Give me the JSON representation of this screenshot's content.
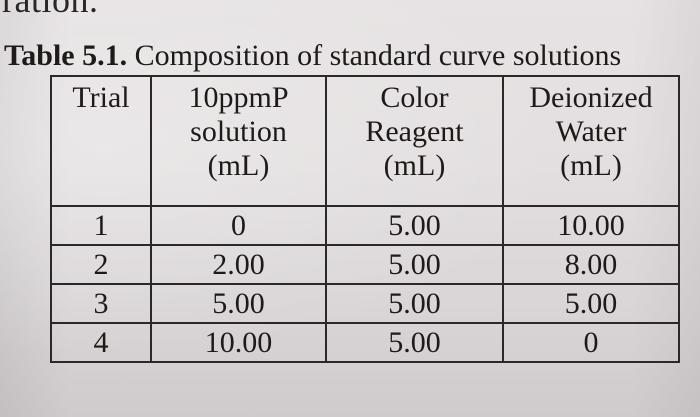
{
  "top_fragment": "ration.",
  "caption": {
    "label": "Table 5.1.",
    "text": "Composition of standard curve solutions"
  },
  "table": {
    "headers": [
      [
        "Trial"
      ],
      [
        "10ppmP",
        "solution",
        "(mL)"
      ],
      [
        "Color",
        "Reagent",
        "(mL)"
      ],
      [
        "Deionized",
        "Water",
        "(mL)"
      ]
    ],
    "rows": [
      [
        "1",
        "0",
        "5.00",
        "10.00"
      ],
      [
        "2",
        "2.00",
        "5.00",
        "8.00"
      ],
      [
        "3",
        "5.00",
        "5.00",
        "5.00"
      ],
      [
        "4",
        "10.00",
        "5.00",
        "0"
      ]
    ]
  }
}
